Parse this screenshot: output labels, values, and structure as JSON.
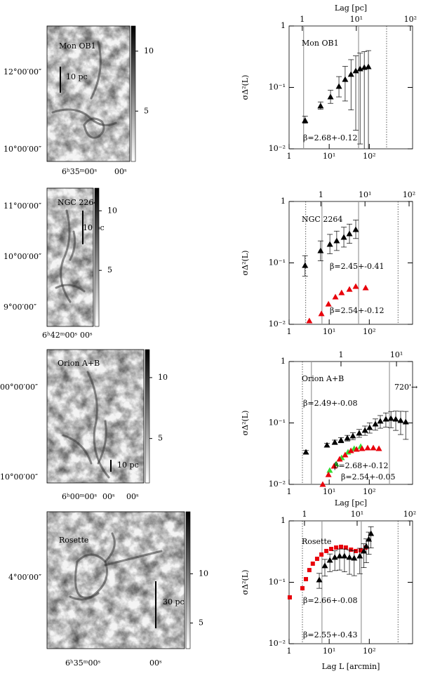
{
  "chart_data": [
    {
      "type": "scatter",
      "xlog": true,
      "ylog": true,
      "xlim": [
        1,
        1200
      ],
      "ylim": [
        0.01,
        1
      ],
      "xticks": [
        1,
        {
          "value": 10,
          "label": "10¹"
        },
        {
          "value": 100,
          "label": "10²"
        }
      ],
      "yticks": [
        {
          "value": 0.01,
          "label": "10⁻²"
        },
        {
          "value": 0.1,
          "label": "10⁻¹"
        },
        1
      ],
      "x2lim": [
        0.57,
        110
      ],
      "x2ticks": [
        1,
        {
          "value": 10,
          "label": "10¹"
        },
        {
          "value": 100,
          "label": "10²"
        }
      ],
      "x2label": "Lag [pc]",
      "ylabel": "σΔ²(L)",
      "vlines": [
        {
          "x": 2.3,
          "style": "solid"
        },
        {
          "x": 54,
          "style": "solid"
        },
        {
          "x": 270,
          "style": "dotted"
        }
      ],
      "series": [
        {
          "color": "#000000",
          "marker": "triangle",
          "x": [
            2.5,
            6.1,
            10.8,
            17.5,
            25,
            35,
            46,
            59,
            75,
            95
          ],
          "values": [
            0.029,
            0.05,
            0.07,
            0.104,
            0.135,
            0.163,
            0.186,
            0.201,
            0.212,
            0.217
          ],
          "errors": [
            [
              0.003,
              0.005
            ],
            [
              0.006,
              0.008
            ],
            [
              0.015,
              0.02
            ],
            [
              0.034,
              0.046
            ],
            [
              0.075,
              0.085
            ],
            [
              0.12,
              0.12
            ],
            [
              0.166,
              0.14
            ],
            [
              0.189,
              0.16
            ],
            [
              0.205,
              0.17
            ],
            [
              0.212,
              0.18
            ]
          ]
        }
      ],
      "annotations": [
        {
          "text": "Mon OB1",
          "color": "#000000"
        },
        {
          "text": "β=2.68+-0.12",
          "color": "#000000"
        }
      ]
    },
    {
      "type": "scatter",
      "xlog": true,
      "ylog": true,
      "xlim": [
        1,
        1200
      ],
      "ylim": [
        0.01,
        1
      ],
      "xticks": [
        1,
        {
          "value": 10,
          "label": "10¹"
        },
        {
          "value": 100,
          "label": "10²"
        }
      ],
      "yticks": [
        {
          "value": 0.01,
          "label": "10⁻²"
        },
        {
          "value": 0.1,
          "label": "10⁻¹"
        },
        1
      ],
      "x2lim": [
        0.19,
        120
      ],
      "x2ticks": [
        1,
        {
          "value": 10,
          "label": "10¹"
        },
        {
          "value": 100,
          "label": "10²"
        }
      ],
      "ylabel": "σΔ²(L)",
      "vlines": [
        {
          "x": 2.6,
          "style": "dotted"
        },
        {
          "x": 6.6,
          "style": "solid"
        },
        {
          "x": 54,
          "style": "solid"
        },
        {
          "x": 520,
          "style": "dotted"
        }
      ],
      "series": [
        {
          "color": "#000000",
          "marker": "triangle",
          "x": [
            2.5,
            6.1,
            10.4,
            15.4,
            23.2,
            32,
            46
          ],
          "values": [
            0.091,
            0.158,
            0.201,
            0.229,
            0.261,
            0.298,
            0.349
          ],
          "errors": [
            [
              0.03,
              0.04
            ],
            [
              0.05,
              0.07
            ],
            [
              0.06,
              0.09
            ],
            [
              0.07,
              0.1
            ],
            [
              0.08,
              0.12
            ],
            [
              0.09,
              0.13
            ],
            [
              0.1,
              0.15
            ]
          ]
        },
        {
          "color": "#e8000b",
          "marker": "triangle",
          "x": [
            3.2,
            6.4,
            9.6,
            14.3,
            20.4,
            32,
            46,
            81
          ],
          "values": [
            0.0114,
            0.0149,
            0.0214,
            0.0279,
            0.0327,
            0.0372,
            0.0414,
            0.0393
          ]
        }
      ],
      "annotations": [
        {
          "text": "NGC 2264",
          "color": "#000000"
        },
        {
          "text": "β=2.45+-0.41",
          "color": "#000000"
        },
        {
          "text": "β=2.54+-0.12",
          "color": "#e8000b"
        }
      ]
    },
    {
      "type": "scatter",
      "xlog": true,
      "ylog": true,
      "xlim": [
        1,
        1200
      ],
      "ylim": [
        0.01,
        1
      ],
      "xticks": [
        1,
        {
          "value": 10,
          "label": "10¹"
        },
        {
          "value": 100,
          "label": "10²"
        }
      ],
      "yticks": [
        {
          "value": 0.01,
          "label": "10⁻²"
        },
        {
          "value": 0.1,
          "label": "10⁻¹"
        },
        1
      ],
      "x2lim": [
        0.116,
        19.5
      ],
      "x2ticks": [
        1,
        {
          "value": 10,
          "label": "10¹"
        }
      ],
      "ylabel": "σΔ²(L)",
      "vlines": [
        {
          "x": 2.15,
          "style": "dotted"
        },
        {
          "x": 3.6,
          "style": "solid"
        },
        {
          "x": 318,
          "style": "solid"
        }
      ],
      "series": [
        {
          "color": "#000000",
          "marker": "triangle",
          "x": [
            2.63,
            8.8,
            13.8,
            19.7,
            28.4,
            39,
            56,
            78,
            102,
            142,
            188,
            259,
            347,
            457,
            605,
            810
          ],
          "values": [
            0.0336,
            0.0436,
            0.0485,
            0.0525,
            0.0568,
            0.0615,
            0.0683,
            0.0759,
            0.0843,
            0.0962,
            0.107,
            0.1156,
            0.1187,
            0.1156,
            0.1097,
            0.104
          ],
          "errors": [
            [
              0.002,
              0.002
            ],
            [
              0.003,
              0.003
            ],
            [
              0.004,
              0.004
            ],
            [
              0.005,
              0.005
            ],
            [
              0.006,
              0.006
            ],
            [
              0.008,
              0.008
            ],
            [
              0.01,
              0.01
            ],
            [
              0.013,
              0.013
            ],
            [
              0.016,
              0.016
            ],
            [
              0.02,
              0.02
            ],
            [
              0.025,
              0.025
            ],
            [
              0.03,
              0.03
            ],
            [
              0.035,
              0.035
            ],
            [
              0.04,
              0.04
            ],
            [
              0.045,
              0.045
            ],
            [
              0.05,
              0.05
            ]
          ]
        },
        {
          "color": "#33dd33",
          "marker": "triangle",
          "x": [
            10.3,
            14.9,
            20.5,
            29.5,
            42,
            61
          ],
          "values": [
            0.0169,
            0.0215,
            0.0272,
            0.0336,
            0.0383,
            0.0414
          ]
        },
        {
          "color": "#e8000b",
          "marker": "triangle",
          "x": [
            6.9,
            9.6,
            13.2,
            18.2,
            25,
            34.8,
            48,
            66,
            91,
            126,
            174
          ],
          "values": [
            0.01,
            0.0144,
            0.0198,
            0.0258,
            0.0302,
            0.0354,
            0.0373,
            0.0383,
            0.0393,
            0.0393,
            0.0383
          ]
        }
      ],
      "annotations": [
        {
          "text": "Orion A+B",
          "color": "#000000"
        },
        {
          "text": "720'→",
          "color": "#000000"
        },
        {
          "text": "β=2.49+-0.08",
          "color": "#000000"
        },
        {
          "text": "β=2.68+-0.12",
          "color": "#e8000b"
        },
        {
          "text": "β=2.54+-0.05",
          "color": "#33dd33"
        }
      ]
    },
    {
      "type": "scatter",
      "xlog": true,
      "ylog": true,
      "xlim": [
        1,
        1200
      ],
      "ylim": [
        0.01,
        1
      ],
      "xticks": [
        1,
        {
          "value": 10,
          "label": "10¹"
        },
        {
          "value": 100,
          "label": "10²"
        }
      ],
      "yticks": [
        {
          "value": 0.01,
          "label": "10⁻²"
        },
        {
          "value": 0.1,
          "label": "10⁻¹"
        },
        1
      ],
      "x2lim": [
        0.51,
        113
      ],
      "x2ticks": [
        1,
        {
          "value": 10,
          "label": "10¹"
        },
        {
          "value": 100,
          "label": "10²"
        }
      ],
      "x2label": "Lag [pc]",
      "ylabel": "σΔ²(L)",
      "xlabel": "Lag L [arcmin]",
      "vlines": [
        {
          "x": 2.15,
          "style": "dotted"
        },
        {
          "x": 6.6,
          "style": "solid"
        },
        {
          "x": 63,
          "style": "solid"
        },
        {
          "x": 520,
          "style": "dotted"
        }
      ],
      "series": [
        {
          "color": "#e8000b",
          "marker": "square",
          "x": [
            1.04,
            2.15,
            2.63,
            3.2,
            3.9,
            5.0,
            6.4,
            8.5,
            11.2,
            14.9,
            19.7,
            26,
            35,
            46,
            61,
            81
          ],
          "values": [
            0.0568,
            0.08,
            0.1125,
            0.158,
            0.201,
            0.241,
            0.283,
            0.323,
            0.349,
            0.368,
            0.378,
            0.368,
            0.34,
            0.323,
            0.331,
            0.368
          ]
        },
        {
          "color": "#000000",
          "marker": "triangle",
          "x": [
            5.66,
            7.8,
            10.4,
            13.8,
            18.2,
            24,
            32,
            42,
            58,
            73,
            84,
            97,
            110
          ],
          "values": [
            0.1097,
            0.186,
            0.229,
            0.255,
            0.268,
            0.268,
            0.255,
            0.248,
            0.268,
            0.323,
            0.388,
            0.505,
            0.622
          ],
          "errors": [
            [
              0.03,
              0.03
            ],
            [
              0.06,
              0.05
            ],
            [
              0.08,
              0.06
            ],
            [
              0.1,
              0.07
            ],
            [
              0.11,
              0.08
            ],
            [
              0.12,
              0.08
            ],
            [
              0.12,
              0.08
            ],
            [
              0.12,
              0.08
            ],
            [
              0.13,
              0.09
            ],
            [
              0.15,
              0.1
            ],
            [
              0.18,
              0.12
            ],
            [
              0.22,
              0.15
            ],
            [
              0.26,
              0.18
            ]
          ]
        }
      ],
      "annotations": [
        {
          "text": "Rosette",
          "color": "#000000"
        },
        {
          "text": "β=2.66+-0.08",
          "color": "#e8000b"
        },
        {
          "text": "β=2.55+-0.43",
          "color": "#000000"
        }
      ]
    }
  ],
  "maps": [
    {
      "name": "Mon OB1",
      "scale": "10 pc",
      "ylabels": [
        "12°00′00″",
        "10°00′00″"
      ],
      "xlabels": [
        "6ʰ35ᵐ00ˢ",
        "00ˢ"
      ],
      "cbar_lim": [
        0.8,
        12.1
      ],
      "cbar_ticks": [
        10,
        5
      ]
    },
    {
      "name": "NGC 2264",
      "scale": "10 pc",
      "ylabels": [
        "11°00′00″",
        "10°00′00″",
        "9°00′00″"
      ],
      "xlabels": [
        "6ʰ42ᵐ00ˢ",
        "00ˢ"
      ],
      "cbar_lim": [
        0.3,
        11.9
      ],
      "cbar_ticks": [
        10,
        5
      ]
    },
    {
      "name": "Orion A+B",
      "scale": "10 pc",
      "ylabels": [
        "00°00′00″",
        "10°00′00″"
      ],
      "xlabels": [
        "6ʰ00ᵐ00ˢ",
        "00ˢ",
        "00ˢ"
      ],
      "cbar_lim": [
        1.35,
        12.3
      ],
      "cbar_ticks": [
        10,
        5
      ]
    },
    {
      "name": "Rosette",
      "scale": "30 pc",
      "ylabels": [
        "4°00′00″"
      ],
      "xlabels": [
        "6ʰ35ᵐ00ˢ",
        "00ˢ"
      ],
      "cbar_lim": [
        2.4,
        16.3
      ],
      "cbar_ticks": [
        10,
        5
      ]
    }
  ]
}
